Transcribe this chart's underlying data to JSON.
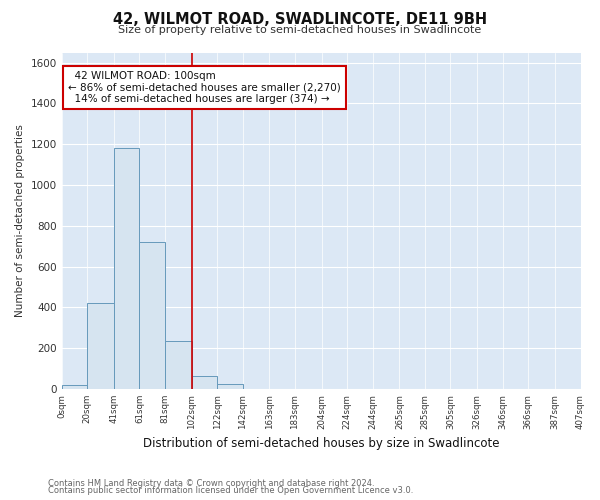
{
  "title": "42, WILMOT ROAD, SWADLINCOTE, DE11 9BH",
  "subtitle": "Size of property relative to semi-detached houses in Swadlincote",
  "xlabel": "Distribution of semi-detached houses by size in Swadlincote",
  "ylabel": "Number of semi-detached properties",
  "footnote1": "Contains HM Land Registry data © Crown copyright and database right 2024.",
  "footnote2": "Contains public sector information licensed under the Open Government Licence v3.0.",
  "bar_edges": [
    0,
    20,
    41,
    61,
    81,
    102,
    122,
    142,
    163,
    183,
    204,
    224,
    244,
    265,
    285,
    305,
    326,
    346,
    366,
    387,
    407
  ],
  "bar_heights": [
    20,
    420,
    1180,
    720,
    235,
    65,
    25,
    0,
    0,
    0,
    0,
    0,
    0,
    0,
    0,
    0,
    0,
    0,
    0,
    0
  ],
  "tick_labels": [
    "0sqm",
    "20sqm",
    "41sqm",
    "61sqm",
    "81sqm",
    "102sqm",
    "122sqm",
    "142sqm",
    "163sqm",
    "183sqm",
    "204sqm",
    "224sqm",
    "244sqm",
    "265sqm",
    "285sqm",
    "305sqm",
    "326sqm",
    "346sqm",
    "366sqm",
    "387sqm",
    "407sqm"
  ],
  "bar_color": "#d6e4f0",
  "bar_edge_color": "#6699bb",
  "property_line_x": 102,
  "property_label": "42 WILMOT ROAD: 100sqm",
  "pct_smaller": 86,
  "n_smaller": 2270,
  "pct_larger": 14,
  "n_larger": 374,
  "annotation_box_color": "#ffffff",
  "annotation_box_edge": "#cc0000",
  "vline_color": "#cc0000",
  "ylim": [
    0,
    1650
  ],
  "yticks": [
    0,
    200,
    400,
    600,
    800,
    1000,
    1200,
    1400,
    1600
  ],
  "background_color": "#ffffff",
  "plot_bg_color": "#dce8f5",
  "grid_color": "#ffffff"
}
